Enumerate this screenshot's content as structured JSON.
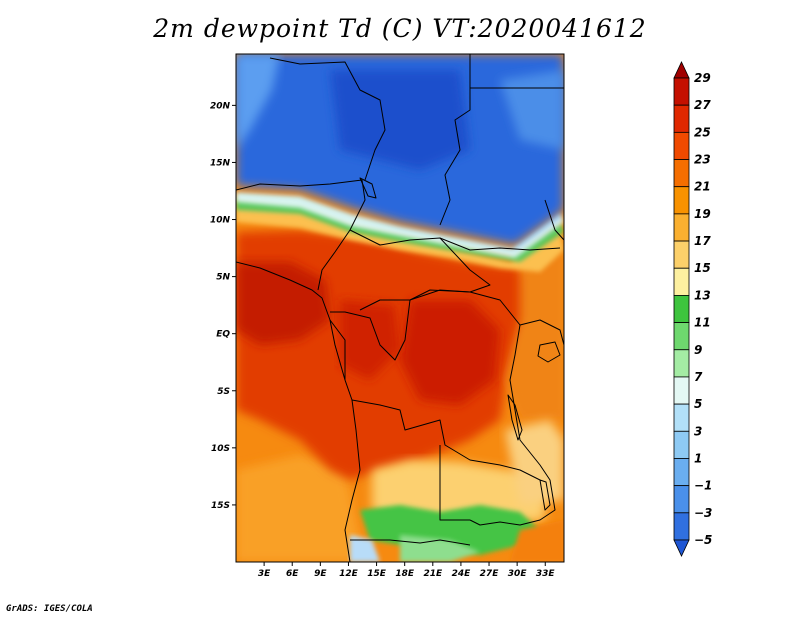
{
  "title": "2m dewpoint Td (C) VT:2020041612",
  "credit": "GrADS: IGES/COLA",
  "map": {
    "lon_range": [
      0,
      35
    ],
    "lat_range": [
      -20,
      24.5
    ],
    "lat_ticks": [
      {
        "value": 20,
        "label": "20N"
      },
      {
        "value": 15,
        "label": "15N"
      },
      {
        "value": 10,
        "label": "10N"
      },
      {
        "value": 5,
        "label": "5N"
      },
      {
        "value": 0,
        "label": "EQ"
      },
      {
        "value": -5,
        "label": "5S"
      },
      {
        "value": -10,
        "label": "10S"
      },
      {
        "value": -15,
        "label": "15S"
      }
    ],
    "lon_ticks": [
      {
        "value": 3,
        "label": "3E"
      },
      {
        "value": 6,
        "label": "6E"
      },
      {
        "value": 9,
        "label": "9E"
      },
      {
        "value": 12,
        "label": "12E"
      },
      {
        "value": 15,
        "label": "15E"
      },
      {
        "value": 18,
        "label": "18E"
      },
      {
        "value": 21,
        "label": "21E"
      },
      {
        "value": 24,
        "label": "24E"
      },
      {
        "value": 27,
        "label": "27E"
      },
      {
        "value": 30,
        "label": "30E"
      },
      {
        "value": 33,
        "label": "33E"
      }
    ]
  },
  "colorbar": {
    "levels": [
      "29",
      "27",
      "25",
      "23",
      "21",
      "19",
      "17",
      "15",
      "13",
      "11",
      "9",
      "7",
      "5",
      "3",
      "1",
      "−1",
      "−3",
      "−5"
    ],
    "colors": [
      "#a00000",
      "#c41000",
      "#e02800",
      "#f04a00",
      "#f56e00",
      "#f89200",
      "#fab030",
      "#fcd06a",
      "#fdf0a0",
      "#3ec43e",
      "#6ed86e",
      "#a4eca4",
      "#e4f8f4",
      "#b2e0f8",
      "#8ecaf4",
      "#6aaef0",
      "#4a90ea",
      "#3070e0",
      "#1e56d4"
    ]
  },
  "colors": {
    "dry_north": "#2060dc",
    "dry_north_light": "#5a9af0",
    "moist_red": "#e23400",
    "moist_darkred": "#c81800",
    "orange": "#f57800",
    "light_orange": "#fbb040",
    "yellow": "#fde090",
    "green": "#3ec43e",
    "light_green": "#78d878",
    "pale_cyan": "#d8f4f0",
    "boundary": "#000000"
  }
}
